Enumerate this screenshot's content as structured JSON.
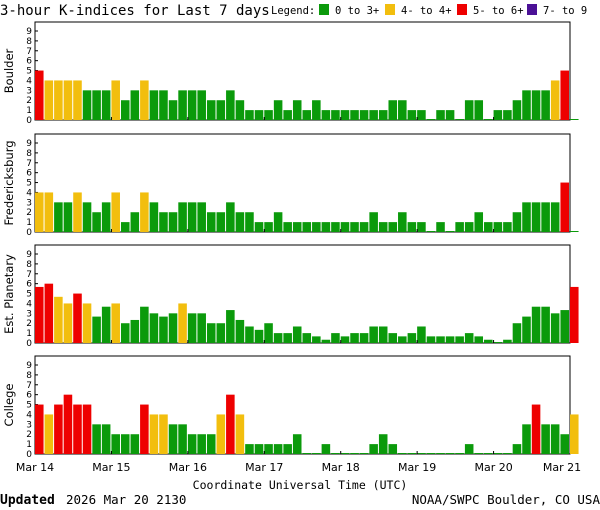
{
  "title": "3-hour K-indices for Last 7 days",
  "legend": {
    "label": "Legend:",
    "items": [
      {
        "label": "0 to 3+",
        "color": "#0b9a0b"
      },
      {
        "label": "4- to 4+",
        "color": "#f2be0e"
      },
      {
        "label": "5- to 6+",
        "color": "#ee0000"
      },
      {
        "label": "7- to 9",
        "color": "#4b1196"
      }
    ]
  },
  "x_axis": {
    "label": "Coordinate Universal Time (UTC)",
    "ticks": [
      "Mar 14",
      "Mar 15",
      "Mar 16",
      "Mar 17",
      "Mar 18",
      "Mar 19",
      "Mar 20",
      "Mar 21"
    ]
  },
  "footer": {
    "updated_label": "Updated",
    "updated_value": "2026 Mar 20 2130",
    "source": "NOAA/SWPC Boulder, CO USA"
  },
  "chart_data": [
    {
      "type": "bar",
      "station": "Boulder",
      "ylim": [
        0,
        9
      ],
      "yticks": [
        "0",
        "1",
        "2",
        "3",
        "4",
        "5",
        "6",
        "7",
        "8",
        "9"
      ],
      "values": [
        5,
        4,
        4,
        4,
        4,
        3,
        3,
        3,
        4,
        2,
        3,
        4,
        3,
        3,
        2,
        3,
        3,
        3,
        2,
        2,
        3,
        2,
        1,
        1,
        1,
        2,
        1,
        2,
        1,
        2,
        1,
        1,
        1,
        1,
        1,
        1,
        1,
        2,
        2,
        1,
        1,
        0,
        1,
        1,
        0,
        2,
        2,
        0,
        1,
        1,
        2,
        3,
        3,
        3,
        4,
        5,
        0
      ]
    },
    {
      "type": "bar",
      "station": "Fredericksburg",
      "ylim": [
        0,
        9
      ],
      "yticks": [
        "0",
        "1",
        "2",
        "3",
        "4",
        "5",
        "6",
        "7",
        "8",
        "9"
      ],
      "values": [
        4,
        4,
        3,
        3,
        4,
        3,
        2,
        3,
        4,
        1,
        2,
        4,
        3,
        2,
        2,
        3,
        3,
        3,
        2,
        2,
        3,
        2,
        2,
        1,
        1,
        2,
        1,
        1,
        1,
        1,
        1,
        1,
        1,
        1,
        1,
        2,
        1,
        1,
        2,
        1,
        1,
        0,
        1,
        0,
        1,
        1,
        2,
        1,
        1,
        1,
        2,
        3,
        3,
        3,
        3,
        5,
        0
      ]
    },
    {
      "type": "bar",
      "station": "Est. Planetary",
      "ylim": [
        0,
        9
      ],
      "yticks": [
        "0",
        "1",
        "2",
        "3",
        "4",
        "5",
        "6",
        "7",
        "8",
        "9"
      ],
      "values": [
        5.67,
        6,
        4.67,
        4,
        5,
        4,
        2.67,
        3.67,
        4,
        2,
        2.33,
        3.67,
        3,
        2.67,
        3,
        4,
        3,
        3,
        2,
        2,
        3.33,
        2.33,
        1.67,
        1.33,
        2,
        1,
        1,
        1.67,
        1,
        0.67,
        0.33,
        1,
        0.67,
        1,
        1,
        1.67,
        1.67,
        1,
        0.67,
        1,
        1.67,
        0.67,
        0.67,
        0.67,
        0.67,
        1,
        0.67,
        0.33,
        0,
        0.33,
        2,
        2.67,
        3.67,
        3.67,
        3,
        3.33,
        5.67
      ]
    },
    {
      "type": "bar",
      "station": "College",
      "ylim": [
        0,
        9
      ],
      "yticks": [
        "0",
        "1",
        "2",
        "3",
        "4",
        "5",
        "6",
        "7",
        "8",
        "9"
      ],
      "values": [
        5,
        4,
        5,
        6,
        5,
        5,
        3,
        3,
        2,
        2,
        2,
        5,
        4,
        4,
        3,
        3,
        2,
        2,
        2,
        4,
        6,
        4,
        1,
        1,
        1,
        1,
        1,
        2,
        0,
        0,
        1,
        0,
        0,
        0,
        0,
        1,
        2,
        1,
        0,
        0,
        0,
        0,
        0,
        0,
        0,
        1,
        0,
        0,
        0,
        0,
        1,
        3,
        5,
        3,
        3,
        2,
        4
      ]
    }
  ]
}
